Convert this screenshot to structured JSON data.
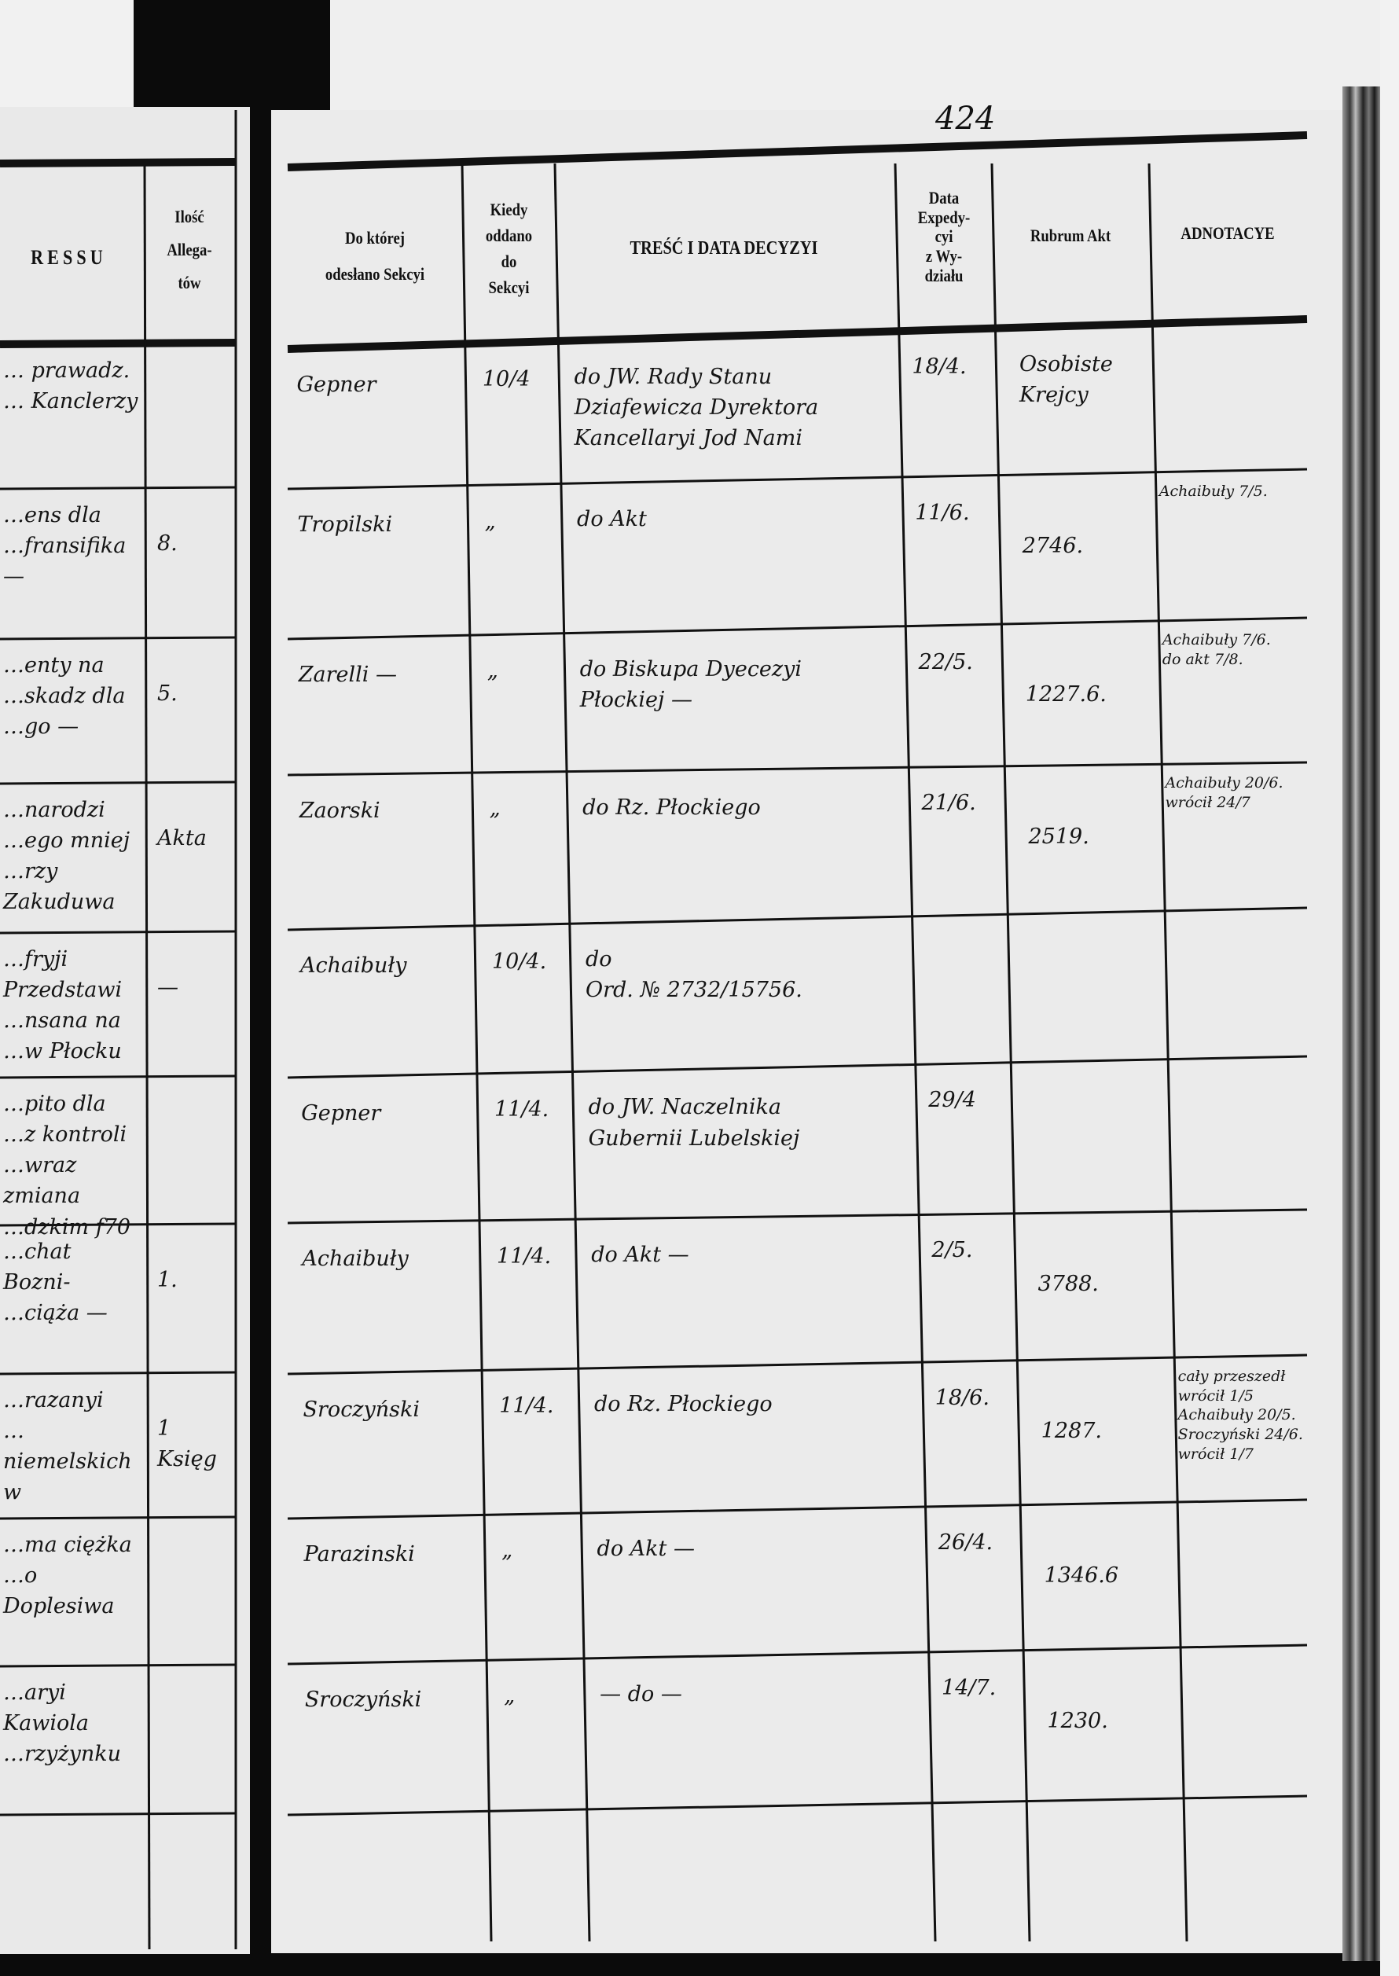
{
  "page_number": "424",
  "left_page": {
    "headers": {
      "subject_fragment": "RESSU",
      "allegata": "Ilość\nAllega-\ntów"
    },
    "rows": [
      {
        "text": "… prawadz.\n… Kanclerzy",
        "allegata": ""
      },
      {
        "text": "…ens dla\n…fransifika\n—",
        "allegata": "8."
      },
      {
        "text": "…enty na\n…skadz dla\n…go —",
        "allegata": "5."
      },
      {
        "text": "…narodzi\n…ego mniej\n…rzy Zakuduwa",
        "allegata": "Akta"
      },
      {
        "text": "…fryji Przedstawi\n…nsana na\n…w Płocku",
        "allegata": "—"
      },
      {
        "text": "…pito dla\n…z kontroli\n…wraz zmiana\n…dzkim f70",
        "allegata": ""
      },
      {
        "text": "…chat Bozni-\n…ciąża —",
        "allegata": "1."
      },
      {
        "text": "…razanyi\n…niemelskich w",
        "allegata": "1\nKsięg"
      },
      {
        "text": "…ma ciężka\n…o Doplesiwa",
        "allegata": ""
      },
      {
        "text": "…aryi Kawiola\n…rzyżynku",
        "allegata": ""
      }
    ]
  },
  "right_page": {
    "headers": {
      "section": "Do której\nodesłano Sekcyi",
      "when_given": "Kiedy\noddano\ndo\nSekcyi",
      "decision": "TREŚĆ I DATA DECYZYI",
      "dispatch_date": "Data\nExpedy-\ncyi\nz Wy-\ndziału",
      "rubrum": "Rubrum Akt",
      "annotations": "ADNOTACYE"
    },
    "rows": [
      {
        "section": "Gepner",
        "when": "10/4",
        "decision": "do JW. Rady Stanu\nDziafewicza Dyrektora\nKancellaryi Jod Nami",
        "dispatch": "18/4.",
        "rubrum": "Osobiste\nKrejcy",
        "annotations": ""
      },
      {
        "section": "Tropilski",
        "when": "„",
        "decision": "do Akt",
        "dispatch": "11/6.",
        "rubrum": "2746.",
        "annotations": "Achaibuły 7/5."
      },
      {
        "section": "Zarelli —",
        "when": "„",
        "decision": "do Biskupa Dyecezyi\nPłockiej —",
        "dispatch": "22/5.",
        "rubrum": "1227.6.",
        "annotations": "Achaibuły 7/6.\ndo akt 7/8."
      },
      {
        "section": "Zaorski",
        "when": "„",
        "decision": "do Rz. Płockiego",
        "dispatch": "21/6.",
        "rubrum": "2519.",
        "annotations": "Achaibuły 20/6.\nwrócił 24/7"
      },
      {
        "section": "Achaibuły",
        "when": "10/4.",
        "decision": "do\n   Ord. № 2732/15756.",
        "dispatch": "",
        "rubrum": "",
        "annotations": ""
      },
      {
        "section": "Gepner",
        "when": "11/4.",
        "decision": "do JW. Naczelnika\nGubernii Lubelskiej",
        "dispatch": "29/4",
        "rubrum": "",
        "annotations": ""
      },
      {
        "section": "Achaibuły",
        "when": "11/4.",
        "decision": "do Akt —",
        "dispatch": "2/5.",
        "rubrum": "3788.",
        "annotations": ""
      },
      {
        "section": "Sroczyński",
        "when": "11/4.",
        "decision": "do Rz. Płockiego",
        "dispatch": "18/6.",
        "rubrum": "1287.",
        "annotations": "cały przeszedł\nwrócił 1/5\nAchaibuły 20/5.\nSroczyński 24/6.\nwrócił 1/7"
      },
      {
        "section": "Parazinski",
        "when": "„",
        "decision": "do Akt —",
        "dispatch": "26/4.",
        "rubrum": "1346.6",
        "annotations": ""
      },
      {
        "section": "Sroczyński",
        "when": "„",
        "decision": "— do —",
        "dispatch": "14/7.",
        "rubrum": "1230.",
        "annotations": ""
      },
      {
        "section": "",
        "when": "",
        "decision": "",
        "dispatch": "",
        "rubrum": "",
        "annotations": ""
      }
    ]
  }
}
